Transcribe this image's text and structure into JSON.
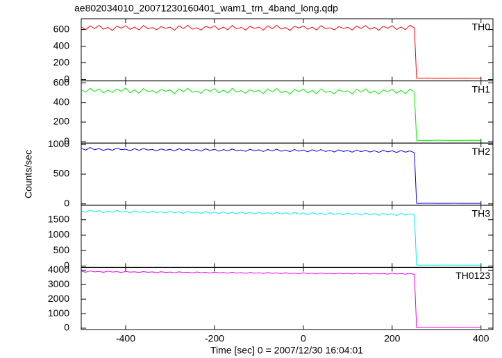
{
  "title": "ae802034010_20071230160401_wam1_trn_4band_long.qdp",
  "x_label": "Time [sec] 0 = 2007/12/30 16:04:01",
  "y_label": "Counts/sec",
  "xlim": [
    -500,
    427
  ],
  "xticks": [
    -400,
    -200,
    0,
    200,
    400
  ],
  "x": [
    -500,
    -490,
    -480,
    -470,
    -460,
    -450,
    -440,
    -430,
    -420,
    -410,
    -400,
    -390,
    -380,
    -370,
    -360,
    -350,
    -340,
    -330,
    -320,
    -310,
    -300,
    -290,
    -280,
    -270,
    -260,
    -250,
    -240,
    -230,
    -220,
    -210,
    -200,
    -190,
    -180,
    -170,
    -160,
    -150,
    -140,
    -130,
    -120,
    -110,
    -100,
    -90,
    -80,
    -70,
    -60,
    -50,
    -40,
    -30,
    -20,
    -10,
    0,
    10,
    20,
    30,
    40,
    50,
    60,
    70,
    80,
    90,
    100,
    110,
    120,
    130,
    140,
    150,
    160,
    170,
    180,
    190,
    200,
    210,
    220,
    230,
    240,
    250,
    255,
    260,
    280,
    300,
    320,
    340,
    360,
    380,
    400
  ],
  "chart_data": [
    {
      "type": "line",
      "ylim": [
        -17,
        730
      ],
      "yticks": [
        0,
        200,
        400,
        600
      ],
      "series": [
        {
          "name": "TH0",
          "color": "#ff0000",
          "values": [
            632,
            598,
            645,
            612,
            650,
            605,
            625,
            590,
            640,
            617,
            647,
            602,
            630,
            595,
            648,
            610,
            623,
            598,
            635,
            615,
            628,
            592,
            644,
            611,
            652,
            604,
            622,
            594,
            641,
            618,
            645,
            600,
            631,
            597,
            649,
            608,
            626,
            596,
            638,
            613,
            630,
            593,
            646,
            610,
            651,
            606,
            624,
            591,
            639,
            619,
            644,
            603,
            629,
            596,
            647,
            611,
            622,
            597,
            636,
            614,
            627,
            594,
            643,
            612,
            649,
            605,
            625,
            592,
            640,
            616,
            646,
            601,
            632,
            598,
            652,
            620,
            15,
            14,
            16,
            13,
            15,
            14,
            16,
            15,
            14
          ]
        }
      ]
    },
    {
      "type": "line",
      "ylim": [
        -14,
        621
      ],
      "yticks": [
        0,
        200,
        400,
        600
      ],
      "series": [
        {
          "name": "TH1",
          "color": "#00ee00",
          "values": [
            532,
            505,
            545,
            512,
            540,
            498,
            528,
            503,
            538,
            515,
            548,
            500,
            530,
            495,
            542,
            510,
            522,
            498,
            535,
            515,
            528,
            492,
            540,
            511,
            545,
            504,
            520,
            494,
            538,
            514,
            542,
            500,
            527,
            497,
            545,
            506,
            522,
            494,
            532,
            510,
            525,
            490,
            540,
            508,
            543,
            502,
            518,
            488,
            534,
            512,
            538,
            498,
            524,
            492,
            540,
            504,
            516,
            490,
            530,
            508,
            520,
            488,
            536,
            506,
            540,
            498,
            518,
            486,
            532,
            510,
            536,
            495,
            525,
            490,
            538,
            505,
            15,
            14,
            13,
            15,
            14,
            13,
            14,
            15,
            13
          ]
        }
      ]
    },
    {
      "type": "line",
      "ylim": [
        -23,
        1023
      ],
      "yticks": [
        0,
        500,
        1000
      ],
      "series": [
        {
          "name": "TH2",
          "color": "#0000dd",
          "values": [
            935,
            905,
            948,
            910,
            930,
            898,
            925,
            902,
            938,
            912,
            920,
            895,
            928,
            900,
            932,
            906,
            915,
            893,
            925,
            902,
            918,
            890,
            928,
            900,
            922,
            894,
            915,
            888,
            926,
            898,
            918,
            886,
            912,
            892,
            922,
            896,
            908,
            884,
            918,
            892,
            910,
            882,
            916,
            890,
            920,
            885,
            905,
            878,
            914,
            888,
            906,
            876,
            910,
            884,
            912,
            880,
            900,
            872,
            908,
            882,
            898,
            870,
            905,
            878,
            902,
            872,
            895,
            866,
            900,
            876,
            894,
            864,
            898,
            870,
            892,
            860,
            10,
            9,
            10,
            8,
            9,
            10,
            9,
            8,
            9
          ]
        }
      ]
    },
    {
      "type": "line",
      "ylim": [
        -45,
        1970
      ],
      "yticks": [
        0,
        500,
        1000,
        1500
      ],
      "series": [
        {
          "name": "TH3",
          "color": "#00eeee",
          "values": [
            1790,
            1740,
            1810,
            1755,
            1795,
            1730,
            1780,
            1745,
            1800,
            1750,
            1775,
            1720,
            1790,
            1735,
            1770,
            1725,
            1780,
            1730,
            1760,
            1715,
            1775,
            1720,
            1755,
            1705,
            1770,
            1715,
            1750,
            1700,
            1765,
            1710,
            1745,
            1695,
            1755,
            1700,
            1740,
            1690,
            1750,
            1695,
            1735,
            1685,
            1745,
            1690,
            1730,
            1680,
            1740,
            1685,
            1725,
            1675,
            1735,
            1680,
            1720,
            1665,
            1730,
            1675,
            1715,
            1660,
            1725,
            1670,
            1710,
            1655,
            1720,
            1665,
            1705,
            1650,
            1715,
            1660,
            1700,
            1645,
            1710,
            1655,
            1695,
            1640,
            1705,
            1650,
            1690,
            1660,
            30,
            28,
            30,
            27,
            29,
            30,
            28,
            29,
            27
          ]
        }
      ]
    },
    {
      "type": "line",
      "ylim": [
        -95,
        4190
      ],
      "yticks": [
        0,
        1000,
        2000,
        3000,
        4000
      ],
      "series": [
        {
          "name": "TH0123",
          "color": "#ee00ee",
          "values": [
            3920,
            3860,
            3950,
            3880,
            3910,
            3850,
            3930,
            3870,
            3900,
            3840,
            3915,
            3860,
            3890,
            3835,
            3905,
            3850,
            3880,
            3825,
            3895,
            3840,
            3870,
            3815,
            3885,
            3830,
            3860,
            3805,
            3875,
            3820,
            3850,
            3800,
            3865,
            3810,
            3840,
            3790,
            3855,
            3800,
            3830,
            3780,
            3845,
            3790,
            3820,
            3770,
            3835,
            3780,
            3810,
            3760,
            3825,
            3770,
            3800,
            3750,
            3815,
            3760,
            3790,
            3745,
            3805,
            3755,
            3785,
            3740,
            3800,
            3750,
            3780,
            3735,
            3795,
            3745,
            3775,
            3730,
            3790,
            3740,
            3770,
            3725,
            3785,
            3735,
            3765,
            3720,
            3780,
            3700,
            50,
            48,
            50,
            47,
            49,
            51,
            48,
            50,
            47
          ]
        }
      ]
    }
  ]
}
